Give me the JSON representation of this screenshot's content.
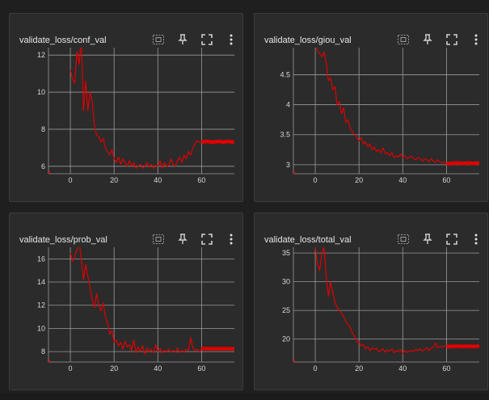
{
  "colors": {
    "series": "#e00000",
    "grid": "#9a9a9a",
    "axis_text": "#d8d8d8",
    "card_bg": "#2b2b2b"
  },
  "icons": [
    "data-select-icon",
    "pin-icon",
    "fullscreen-icon",
    "more-vert-icon"
  ],
  "cards": [
    {
      "title": "validate_loss/conf_val",
      "chart_data": {
        "type": "line",
        "title": "validate_loss/conf_val",
        "xlim": [
          -10,
          75
        ],
        "ylim": [
          5.6,
          12.4
        ],
        "xticks": [
          0,
          20,
          40,
          60
        ],
        "yticks": [
          6,
          8,
          10,
          12
        ],
        "ytick_labels": [
          "6",
          "8",
          "10",
          "12"
        ],
        "series": [
          {
            "x": [
              0,
              1,
              2,
              3,
              4,
              5,
              6,
              7,
              8,
              9,
              10,
              11,
              12,
              13,
              14,
              15,
              16,
              17,
              18,
              19,
              20,
              21,
              22,
              23,
              24,
              25,
              26,
              27,
              28,
              29,
              30,
              31,
              32,
              33,
              34,
              35,
              36,
              37,
              38,
              39,
              40,
              41,
              42,
              43,
              44,
              45,
              46,
              47,
              48,
              49,
              50,
              51,
              52,
              53,
              54,
              55,
              56,
              57,
              58,
              59,
              60,
              62,
              65,
              68,
              70,
              72,
              75
            ],
            "y": [
              11.2,
              10.7,
              10.5,
              12.2,
              11.5,
              13,
              9,
              10.6,
              9,
              10,
              9.5,
              8.2,
              7.7,
              7.6,
              7.3,
              7.5,
              7.0,
              6.8,
              6.6,
              6.9,
              6.4,
              6.2,
              6.5,
              6.1,
              6.4,
              6.2,
              6.0,
              6.3,
              6.0,
              6.2,
              5.9,
              6.0,
              6.1,
              5.9,
              6.0,
              6.2,
              5.95,
              6.1,
              5.9,
              6.05,
              6.0,
              6.3,
              5.9,
              6.2,
              6.0,
              6.05,
              6.4,
              6.1,
              6.0,
              6.3,
              6.5,
              6.2,
              6.6,
              6.4,
              6.8,
              6.6,
              7.0,
              7.2,
              7.4,
              7.3,
              7.3,
              7.35,
              7.3,
              7.35,
              7.3,
              7.35,
              7.3
            ]
          }
        ]
      }
    },
    {
      "title": "validate_loss/giou_val",
      "chart_data": {
        "type": "line",
        "title": "validate_loss/giou_val",
        "xlim": [
          -10,
          75
        ],
        "ylim": [
          2.85,
          4.95
        ],
        "xticks": [
          0,
          20,
          40,
          60
        ],
        "yticks": [
          3,
          3.5,
          4,
          4.5
        ],
        "ytick_labels": [
          "3",
          "3.5",
          "4",
          "4.5"
        ],
        "series": [
          {
            "x": [
              0,
              1,
              2,
              3,
              4,
              5,
              6,
              7,
              8,
              9,
              10,
              11,
              12,
              13,
              14,
              15,
              16,
              17,
              18,
              19,
              20,
              21,
              22,
              23,
              24,
              25,
              26,
              27,
              28,
              29,
              30,
              31,
              32,
              33,
              34,
              35,
              36,
              37,
              38,
              39,
              40,
              41,
              42,
              43,
              44,
              45,
              46,
              47,
              48,
              49,
              50,
              51,
              52,
              53,
              54,
              55,
              56,
              57,
              58,
              59,
              60,
              62,
              65,
              68,
              70,
              72,
              75
            ],
            "y": [
              5.0,
              4.9,
              4.85,
              4.8,
              4.88,
              4.7,
              4.4,
              4.45,
              4.25,
              4.3,
              4.0,
              4.05,
              3.85,
              3.95,
              3.7,
              3.75,
              3.6,
              3.55,
              3.5,
              3.45,
              3.4,
              3.45,
              3.35,
              3.38,
              3.3,
              3.35,
              3.25,
              3.3,
              3.22,
              3.25,
              3.2,
              3.28,
              3.18,
              3.2,
              3.15,
              3.2,
              3.12,
              3.15,
              3.13,
              3.18,
              3.12,
              3.15,
              3.1,
              3.12,
              3.14,
              3.1,
              3.08,
              3.12,
              3.1,
              3.06,
              3.1,
              3.08,
              3.05,
              3.1,
              3.06,
              3.04,
              3.08,
              3.05,
              3.03,
              3.05,
              3.02,
              3.02,
              3.03,
              3.02,
              3.03,
              3.02,
              3.03
            ]
          }
        ]
      }
    },
    {
      "title": "validate_loss/prob_val",
      "chart_data": {
        "type": "line",
        "title": "validate_loss/prob_val",
        "xlim": [
          -10,
          75
        ],
        "ylim": [
          7.1,
          17
        ],
        "xticks": [
          0,
          20,
          40,
          60
        ],
        "yticks": [
          8,
          10,
          12,
          14,
          16
        ],
        "ytick_labels": [
          "8",
          "10",
          "12",
          "14",
          "16"
        ],
        "series": [
          {
            "x": [
              0,
              1,
              2,
              3,
              4,
              5,
              6,
              7,
              8,
              9,
              10,
              11,
              12,
              13,
              14,
              15,
              16,
              17,
              18,
              19,
              20,
              21,
              22,
              23,
              24,
              25,
              26,
              27,
              28,
              29,
              30,
              31,
              32,
              33,
              34,
              35,
              36,
              37,
              38,
              39,
              40,
              41,
              42,
              43,
              44,
              45,
              46,
              47,
              48,
              49,
              50,
              51,
              52,
              53,
              54,
              55,
              56,
              57,
              58,
              59,
              60,
              62,
              65,
              68,
              70,
              72,
              75
            ],
            "y": [
              16.5,
              15.8,
              16.2,
              16.8,
              17.5,
              16.0,
              14.2,
              15.5,
              14.5,
              13.5,
              12.5,
              11.8,
              13.0,
              12.0,
              11.5,
              12.2,
              11.0,
              10.5,
              9.5,
              9.8,
              8.8,
              9.0,
              8.5,
              8.8,
              8.2,
              8.9,
              8.4,
              8.6,
              8.1,
              9.0,
              7.9,
              8.4,
              8.0,
              8.5,
              7.8,
              8.3,
              8.0,
              8.2,
              7.9,
              8.6,
              8.0,
              8.3,
              7.9,
              8.1,
              8.0,
              8.2,
              7.95,
              8.1,
              8.0,
              8.3,
              7.9,
              8.1,
              8.0,
              8.2,
              8.1,
              9.2,
              8.3,
              8.1,
              8.2,
              8.0,
              8.25,
              8.25,
              8.25,
              8.25,
              8.25,
              8.25,
              8.25
            ]
          }
        ]
      }
    },
    {
      "title": "validate_loss/total_val",
      "chart_data": {
        "type": "line",
        "title": "validate_loss/total_val",
        "xlim": [
          -10,
          75
        ],
        "ylim": [
          16,
          36
        ],
        "xticks": [
          0,
          20,
          40,
          60
        ],
        "yticks": [
          20,
          25,
          30,
          35
        ],
        "ytick_labels": [
          "20",
          "25",
          "30",
          "35"
        ],
        "series": [
          {
            "x": [
              0,
              1,
              2,
              3,
              4,
              5,
              6,
              7,
              8,
              9,
              10,
              11,
              12,
              13,
              14,
              15,
              16,
              17,
              18,
              19,
              20,
              21,
              22,
              23,
              24,
              25,
              26,
              27,
              28,
              29,
              30,
              31,
              32,
              33,
              34,
              35,
              36,
              37,
              38,
              39,
              40,
              41,
              42,
              43,
              44,
              45,
              46,
              47,
              48,
              49,
              50,
              51,
              52,
              53,
              54,
              55,
              56,
              57,
              58,
              59,
              60,
              62,
              65,
              68,
              70,
              72,
              75
            ],
            "y": [
              36,
              33,
              32,
              35,
              36,
              31,
              27.5,
              30,
              28,
              26.5,
              25.5,
              25,
              24.5,
              24,
              23,
              22.5,
              22,
              21,
              20.5,
              19.5,
              19.5,
              18.8,
              19,
              18.3,
              18.7,
              18.0,
              18.5,
              18.2,
              18.4,
              17.8,
              18.0,
              18.3,
              17.7,
              18.1,
              17.9,
              18.3,
              17.6,
              18.0,
              17.8,
              18.2,
              17.5,
              18.0,
              17.7,
              17.9,
              18.0,
              17.8,
              18.2,
              18.0,
              18.3,
              17.9,
              18.2,
              18.5,
              18.0,
              18.4,
              18.6,
              19.3,
              18.5,
              18.7,
              18.6,
              18.8,
              18.7,
              18.7,
              18.75,
              18.7,
              18.75,
              18.7,
              18.75
            ]
          }
        ]
      }
    }
  ]
}
